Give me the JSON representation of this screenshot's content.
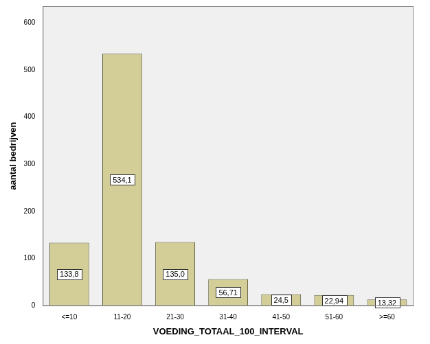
{
  "chart_data": {
    "type": "bar",
    "x_label": "VOEDING_TOTAAL_100_INTERVAL",
    "y_label": "aantal bedrijven",
    "categories": [
      "<=10",
      "11-20",
      "21-30",
      "31-40",
      "41-50",
      "51-60",
      ">=60"
    ],
    "values": [
      133.8,
      534.1,
      135.0,
      56.71,
      24.5,
      22.94,
      13.32
    ],
    "value_labels": [
      "133,8",
      "534,1",
      "135,0",
      "56,71",
      "24,5",
      "22,94",
      "13,32"
    ],
    "data_labels": true,
    "color": "#d3ce97",
    "ylim": [
      0,
      635
    ],
    "yticks": [
      0,
      100,
      200,
      300,
      400,
      500,
      600
    ],
    "grid": false
  }
}
